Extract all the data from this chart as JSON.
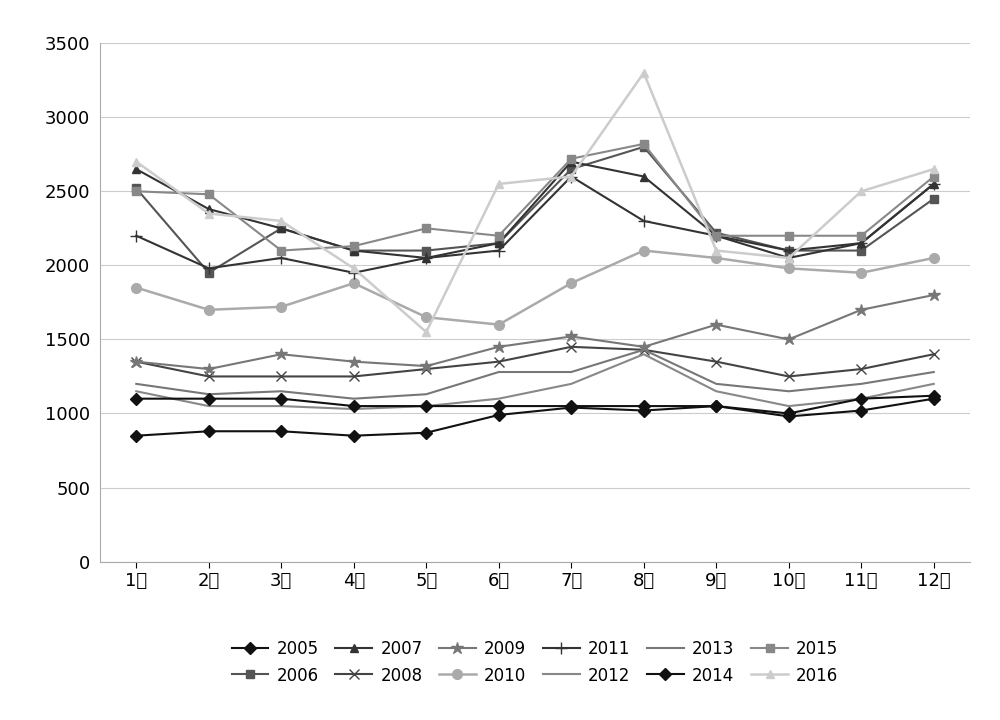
{
  "months": [
    "1月",
    "2月",
    "3月",
    "4月",
    "5月",
    "6月",
    "7月",
    "8月",
    "9月",
    "10月",
    "11月",
    "12月"
  ],
  "series": {
    "2005": [
      850,
      880,
      880,
      850,
      870,
      990,
      1040,
      1020,
      1050,
      980,
      1020,
      1100
    ],
    "2006": [
      2520,
      1950,
      2250,
      2100,
      2100,
      2150,
      2650,
      2800,
      2220,
      2100,
      2100,
      2450
    ],
    "2007": [
      2650,
      2380,
      2250,
      2100,
      2050,
      2150,
      2700,
      2600,
      2200,
      2050,
      2150,
      2550
    ],
    "2008": [
      1350,
      1250,
      1250,
      1250,
      1300,
      1350,
      1450,
      1430,
      1350,
      1250,
      1300,
      1400
    ],
    "2009": [
      1350,
      1300,
      1400,
      1350,
      1320,
      1450,
      1520,
      1450,
      1600,
      1500,
      1700,
      1800
    ],
    "2010": [
      1850,
      1700,
      1720,
      1880,
      1650,
      1600,
      1880,
      2100,
      2050,
      1980,
      1950,
      2050
    ],
    "2011": [
      2200,
      1980,
      2050,
      1950,
      2050,
      2100,
      2600,
      2300,
      2200,
      2100,
      2150,
      2550
    ],
    "2012": [
      1150,
      1050,
      1050,
      1030,
      1050,
      1100,
      1200,
      1400,
      1150,
      1050,
      1100,
      1200
    ],
    "2013": [
      1200,
      1130,
      1150,
      1100,
      1130,
      1280,
      1280,
      1430,
      1200,
      1150,
      1200,
      1280
    ],
    "2014": [
      1100,
      1100,
      1100,
      1050,
      1050,
      1050,
      1050,
      1050,
      1050,
      1000,
      1100,
      1120
    ],
    "2015": [
      2500,
      2480,
      2100,
      2130,
      2250,
      2200,
      2720,
      2820,
      2200,
      2200,
      2200,
      2600
    ],
    "2016": [
      2700,
      2350,
      2300,
      1980,
      1550,
      2550,
      2600,
      3300,
      2100,
      2050,
      2500,
      2650
    ]
  },
  "colors": {
    "2005": "#111111",
    "2006": "#555555",
    "2007": "#333333",
    "2008": "#444444",
    "2009": "#777777",
    "2010": "#aaaaaa",
    "2011": "#333333",
    "2012": "#888888",
    "2013": "#777777",
    "2014": "#111111",
    "2015": "#888888",
    "2016": "#cccccc"
  },
  "markers": {
    "2005": "D",
    "2006": "s",
    "2007": "^",
    "2008": "x",
    "2009": "*",
    "2010": "o",
    "2011": "+",
    "2012": "None",
    "2013": "None",
    "2014": "D",
    "2015": "s",
    "2016": "^"
  },
  "marker_sizes": {
    "2005": 6,
    "2006": 6,
    "2007": 6,
    "2008": 7,
    "2009": 9,
    "2010": 7,
    "2011": 8,
    "2012": 0,
    "2013": 0,
    "2014": 6,
    "2015": 6,
    "2016": 6
  },
  "line_widths": {
    "2005": 1.5,
    "2006": 1.5,
    "2007": 1.5,
    "2008": 1.5,
    "2009": 1.5,
    "2010": 1.8,
    "2011": 1.5,
    "2012": 1.5,
    "2013": 1.5,
    "2014": 1.5,
    "2015": 1.5,
    "2016": 1.8
  },
  "ylim": [
    0,
    3500
  ],
  "yticks": [
    0,
    500,
    1000,
    1500,
    2000,
    2500,
    3000,
    3500
  ],
  "background_color": "#ffffff",
  "legend_row1": [
    "2005",
    "2006",
    "2007",
    "2008",
    "2009",
    "2010"
  ],
  "legend_row2": [
    "2011",
    "2012",
    "2013",
    "2014",
    "2015",
    "2016"
  ]
}
